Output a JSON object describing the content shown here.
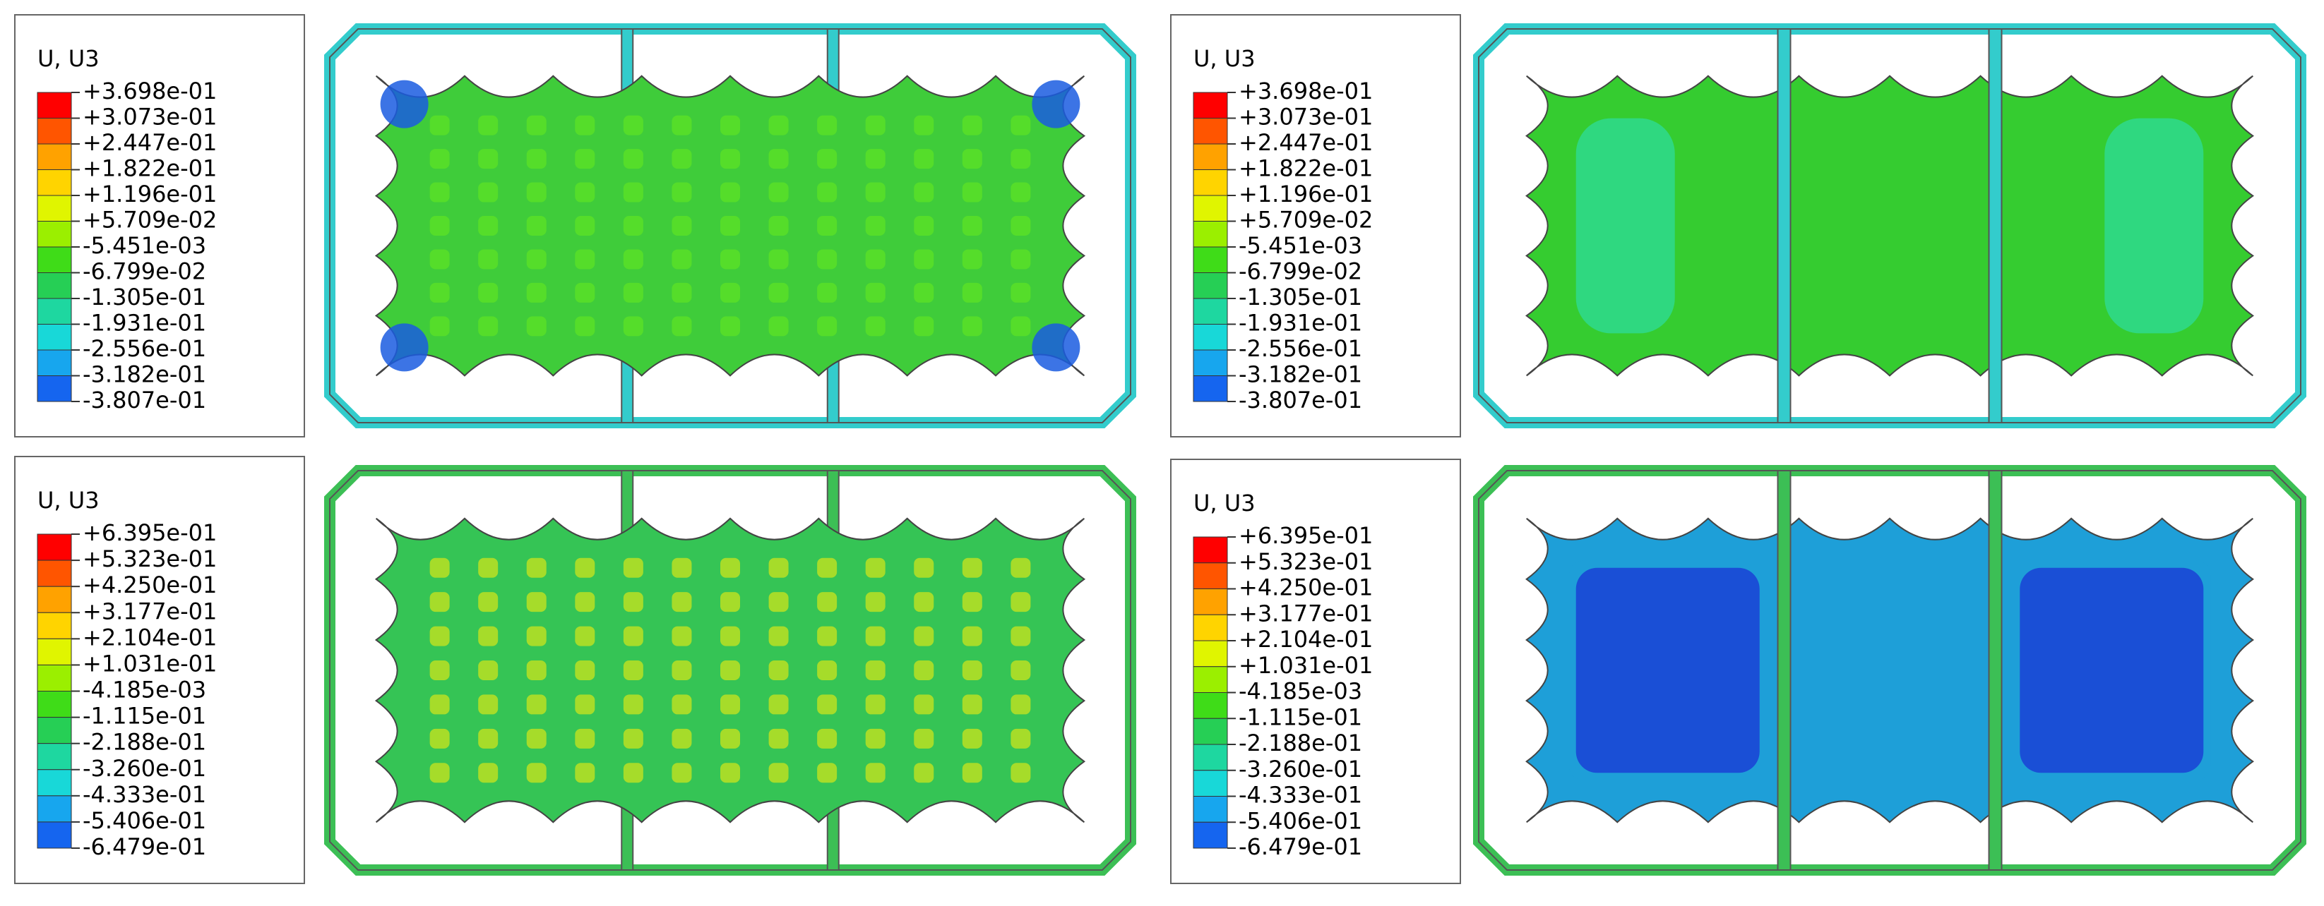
{
  "panels": [
    {
      "legend": {
        "title": "U, U3",
        "labels": [
          "+3.698e-01",
          "+3.073e-01",
          "+2.447e-01",
          "+1.822e-01",
          "+1.196e-01",
          "+5.709e-02",
          "-5.451e-03",
          "-6.799e-02",
          "-1.305e-01",
          "-1.931e-01",
          "-2.556e-01",
          "-3.182e-01",
          "-3.807e-01"
        ]
      }
    },
    {
      "legend": {
        "title": "U, U3",
        "labels": [
          "+3.698e-01",
          "+3.073e-01",
          "+2.447e-01",
          "+1.822e-01",
          "+1.196e-01",
          "+5.709e-02",
          "-5.451e-03",
          "-6.799e-02",
          "-1.305e-01",
          "-1.931e-01",
          "-2.556e-01",
          "-3.182e-01",
          "-3.807e-01"
        ]
      }
    },
    {
      "legend": {
        "title": "U, U3",
        "labels": [
          "+6.395e-01",
          "+5.323e-01",
          "+4.250e-01",
          "+3.177e-01",
          "+2.104e-01",
          "+1.031e-01",
          "-4.185e-03",
          "-1.115e-01",
          "-2.188e-01",
          "-3.260e-01",
          "-4.333e-01",
          "-5.406e-01",
          "-6.479e-01"
        ]
      }
    },
    {
      "legend": {
        "title": "U, U3",
        "labels": [
          "+6.395e-01",
          "+5.323e-01",
          "+4.250e-01",
          "+3.177e-01",
          "+2.104e-01",
          "+1.031e-01",
          "-4.185e-03",
          "-1.115e-01",
          "-2.188e-01",
          "-3.260e-01",
          "-4.333e-01",
          "-5.406e-01",
          "-6.479e-01"
        ]
      }
    }
  ]
}
